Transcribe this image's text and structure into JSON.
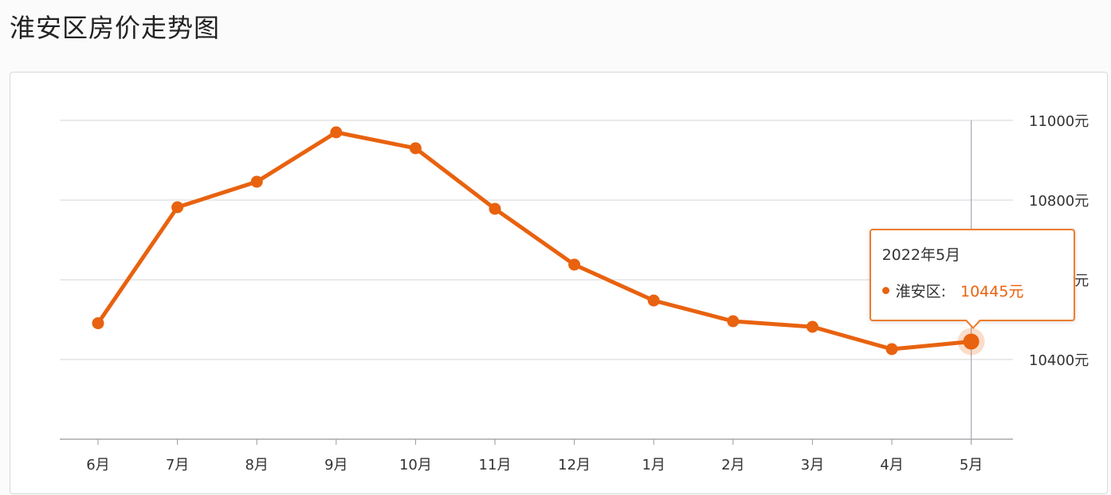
{
  "page": {
    "title": "淮安区房价走势图"
  },
  "colors": {
    "line": "#e8620f",
    "grid": "#d6d6d6",
    "hover_line": "#a8a8b8",
    "tooltip_border": "#ee7d2e"
  },
  "chart_data": {
    "type": "line",
    "title": "淮安区房价走势图",
    "categories": [
      "6月",
      "7月",
      "8月",
      "9月",
      "10月",
      "11月",
      "12月",
      "1月",
      "2月",
      "3月",
      "4月",
      "5月"
    ],
    "series": [
      {
        "name": "淮安区",
        "values": [
          10491,
          10782,
          10846,
          10970,
          10930,
          10778,
          10638,
          10548,
          10496,
          10482,
          10426,
          10445
        ]
      }
    ],
    "y_ticks": [
      10400,
      10600,
      10800,
      11000
    ],
    "y_tick_labels": [
      "10400元",
      "10600元",
      "10800元",
      "11000元"
    ],
    "ylim": [
      10200,
      11000
    ],
    "y_axis_position": "right",
    "grid": true,
    "highlighted_index": 11
  },
  "tooltip": {
    "title": "2022年5月",
    "series_name": "淮安区:",
    "value": "10445元"
  }
}
